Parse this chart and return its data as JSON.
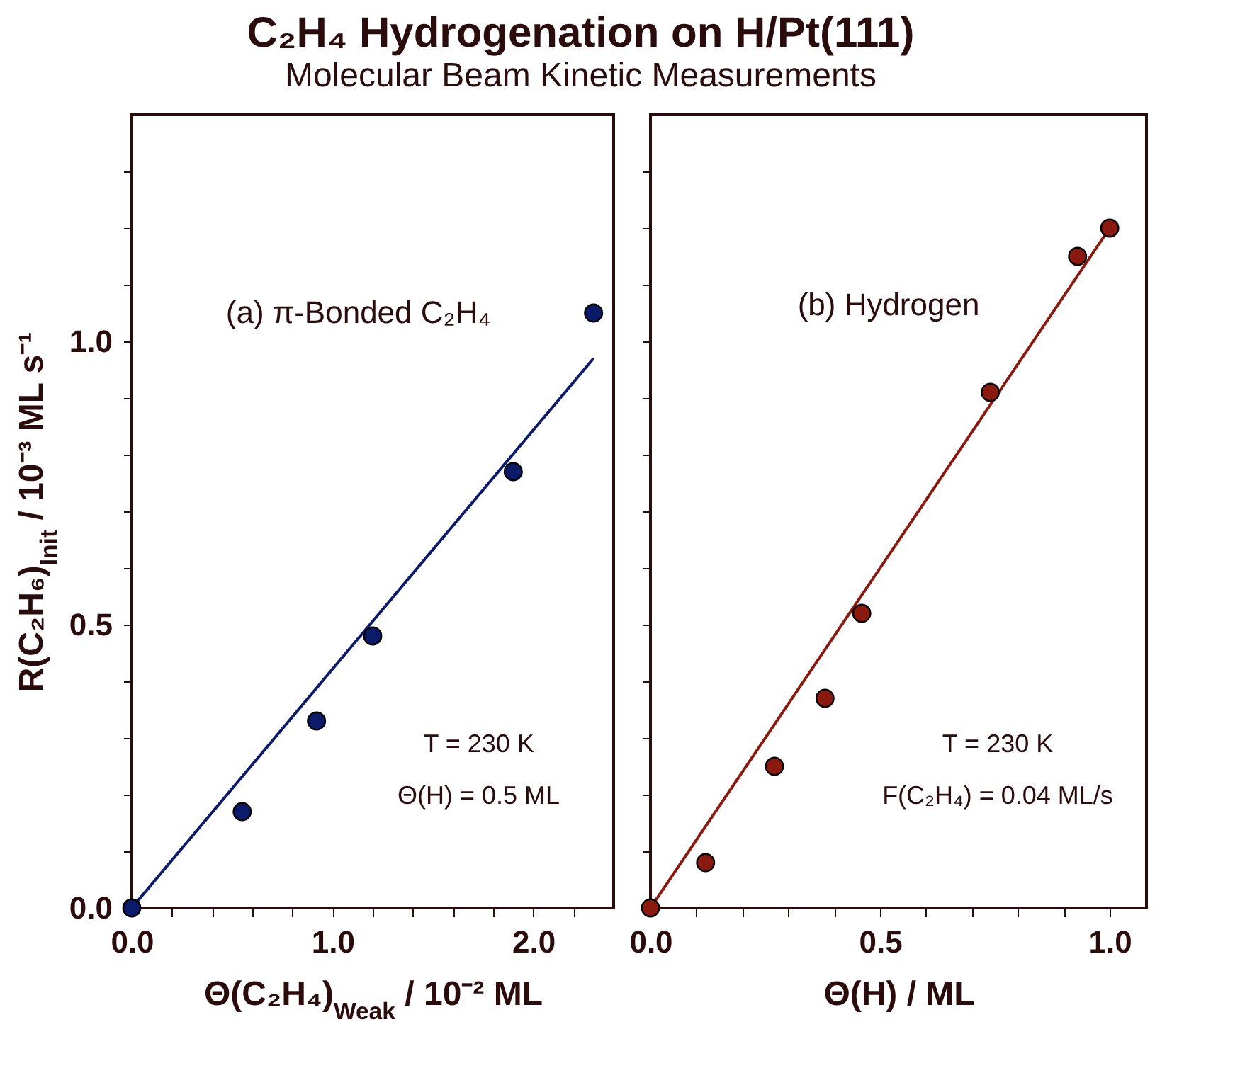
{
  "chart_data": [
    {
      "type": "scatter",
      "title": "C₂H₄ Hydrogenation on H/Pt(111)",
      "subtitle": "Molecular Beam Kinetic Measurements",
      "xlabel": "Θ(C₂H₄)$_{Weak}$ / 10⁻² ML",
      "ylabel": "R(C₂H₆)$_{Init}$ / 10⁻³ ML s⁻¹",
      "xlim": [
        0,
        2.4
      ],
      "xticks": [
        {
          "value": 0,
          "label": "0.0"
        },
        {
          "value": 0.2,
          "label": null
        },
        {
          "value": 0.4,
          "label": null
        },
        {
          "value": 0.6,
          "label": null
        },
        {
          "value": 0.8,
          "label": null
        },
        {
          "value": 1,
          "label": "1.0"
        },
        {
          "value": 1.2,
          "label": null
        },
        {
          "value": 1.4,
          "label": null
        },
        {
          "value": 1.6,
          "label": null
        },
        {
          "value": 1.8,
          "label": null
        },
        {
          "value": 2,
          "label": "2.0"
        },
        {
          "value": 2.2,
          "label": null
        }
      ],
      "ylim": [
        0,
        1.4
      ],
      "yticks": [
        {
          "value": 0,
          "label": "0.0"
        },
        {
          "value": 0.1,
          "label": null
        },
        {
          "value": 0.2,
          "label": null
        },
        {
          "value": 0.3,
          "label": null
        },
        {
          "value": 0.4,
          "label": null
        },
        {
          "value": 0.5,
          "label": "0.5"
        },
        {
          "value": 0.6,
          "label": null
        },
        {
          "value": 0.7,
          "label": null
        },
        {
          "value": 0.8,
          "label": null
        },
        {
          "value": 0.9,
          "label": null
        },
        {
          "value": 1,
          "label": "1.0"
        },
        {
          "value": 1.1,
          "label": null
        },
        {
          "value": 1.2,
          "label": null
        },
        {
          "value": 1.3,
          "label": null
        }
      ],
      "series": [
        {
          "marker": "circle",
          "color": "#0c1a6a",
          "x": [
            0,
            0.55,
            0.92,
            1.2,
            1.9,
            2.3
          ],
          "values": [
            0,
            0.17,
            0.33,
            0.48,
            0.77,
            1.05
          ]
        },
        {
          "type": "line",
          "marker": "none",
          "color": "#0c1a6a",
          "x": [
            0,
            2.3
          ],
          "values": [
            0,
            0.97
          ]
        }
      ],
      "annotations": [
        "(a) π-Bonded C₂H₄",
        "T = 230 K",
        "Θ(H) = 0.5 ML"
      ]
    },
    {
      "type": "scatter",
      "xlabel": "Θ(H) / ML",
      "xlim": [
        0,
        1.08
      ],
      "xticks": [
        {
          "value": 0,
          "label": "0.0"
        },
        {
          "value": 0.1,
          "label": null
        },
        {
          "value": 0.2,
          "label": null
        },
        {
          "value": 0.3,
          "label": null
        },
        {
          "value": 0.4,
          "label": null
        },
        {
          "value": 0.5,
          "label": "0.5"
        },
        {
          "value": 0.6,
          "label": null
        },
        {
          "value": 0.7,
          "label": null
        },
        {
          "value": 0.8,
          "label": null
        },
        {
          "value": 0.9,
          "label": null
        },
        {
          "value": 1,
          "label": "1.0"
        }
      ],
      "ylim": [
        0,
        1.4
      ],
      "yticks": [
        {
          "value": 0,
          "label": null
        },
        {
          "value": 0.1,
          "label": null
        },
        {
          "value": 0.2,
          "label": null
        },
        {
          "value": 0.3,
          "label": null
        },
        {
          "value": 0.4,
          "label": null
        },
        {
          "value": 0.5,
          "label": null
        },
        {
          "value": 0.6,
          "label": null
        },
        {
          "value": 0.7,
          "label": null
        },
        {
          "value": 0.8,
          "label": null
        },
        {
          "value": 0.9,
          "label": null
        },
        {
          "value": 1,
          "label": null
        },
        {
          "value": 1.1,
          "label": null
        },
        {
          "value": 1.2,
          "label": null
        },
        {
          "value": 1.3,
          "label": null
        }
      ],
      "tick_labels": "x",
      "series": [
        {
          "marker": "circle",
          "color": "#8a1a10",
          "x": [
            0,
            0.12,
            0.27,
            0.38,
            0.46,
            0.74,
            0.93,
            1.0
          ],
          "values": [
            0,
            0.08,
            0.25,
            0.37,
            0.52,
            0.91,
            1.15,
            1.2
          ]
        },
        {
          "type": "line",
          "marker": "none",
          "color": "#8a1a10",
          "x": [
            0,
            1.0
          ],
          "values": [
            0,
            1.2
          ]
        }
      ],
      "annotations": [
        "(b) Hydrogen",
        "T = 230 K",
        "F(C₂H₄) = 0.04 ML/s"
      ]
    }
  ]
}
